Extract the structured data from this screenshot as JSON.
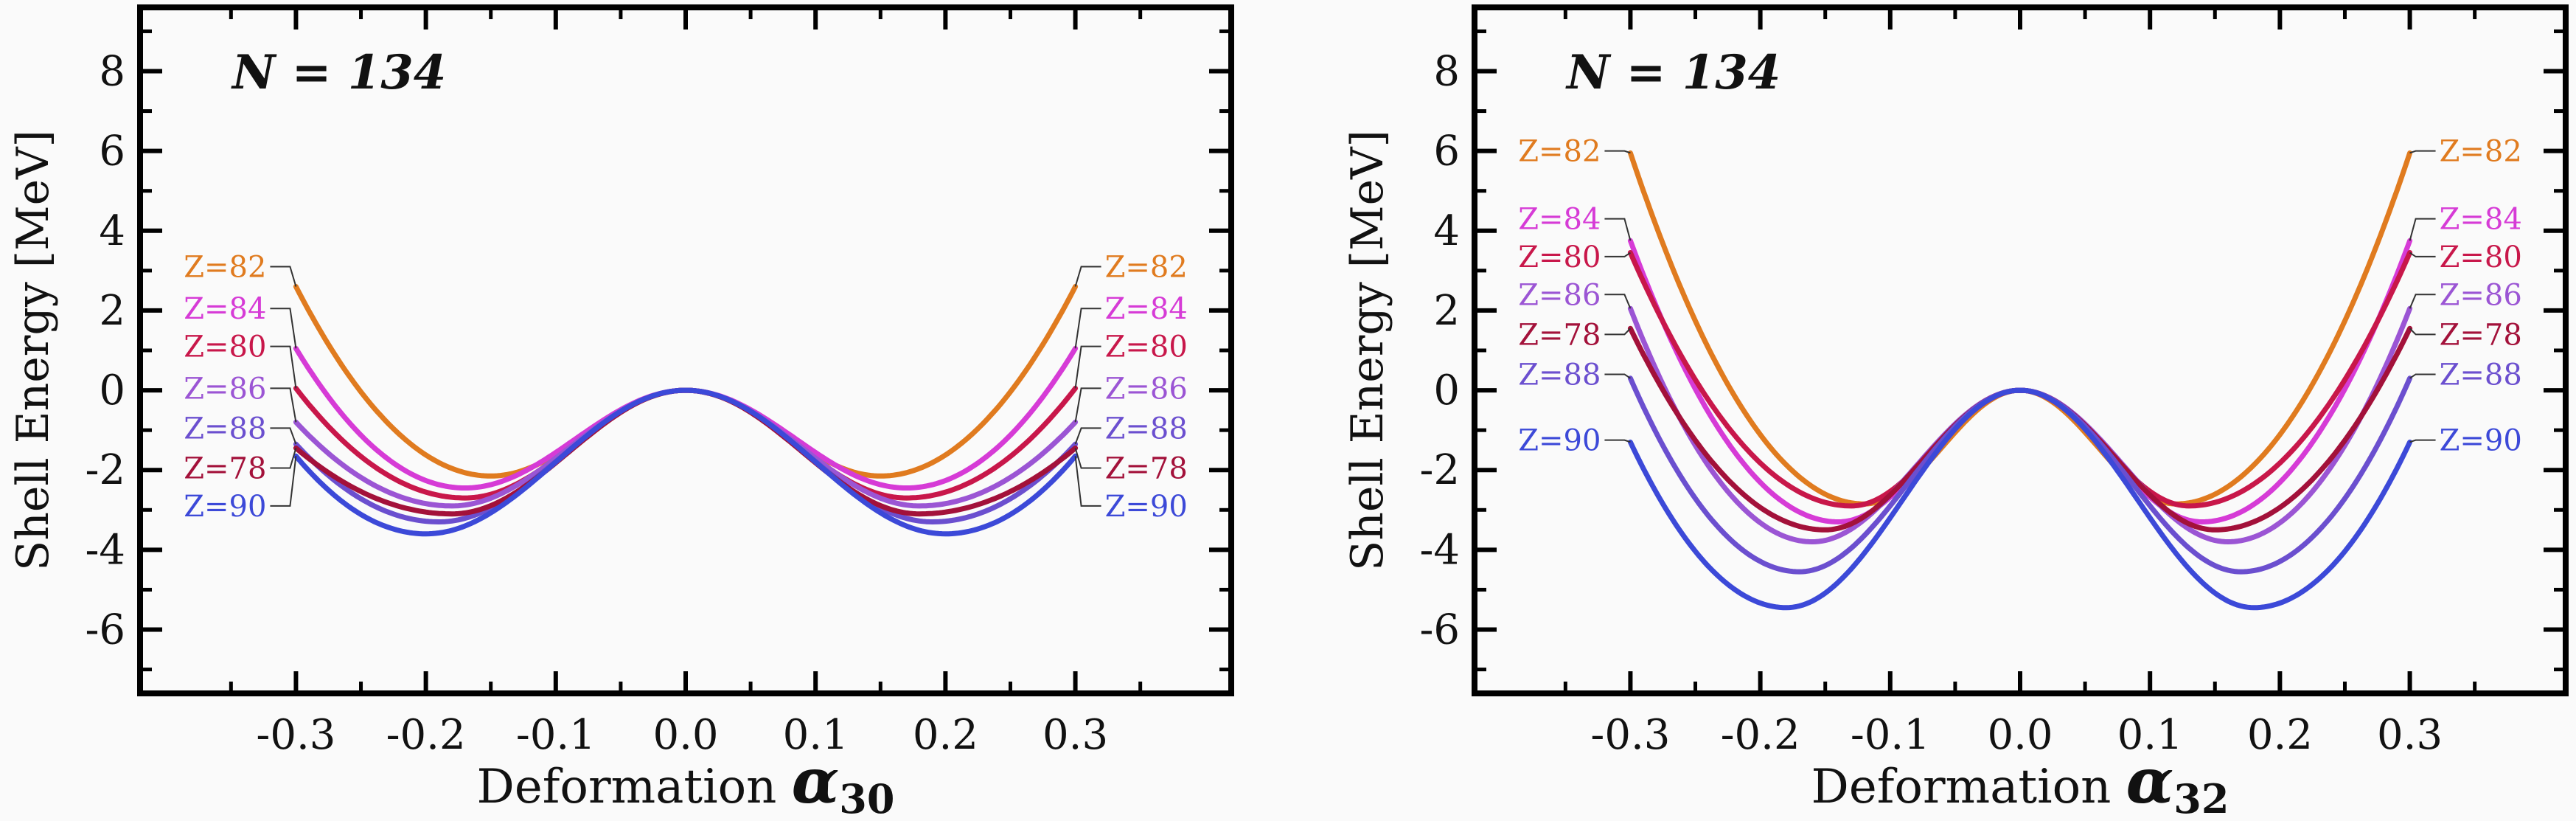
{
  "chart_data": [
    {
      "type": "line",
      "annotation": "N = 134",
      "xlabel_text": "Deformation ",
      "xlabel_symbol": "α",
      "xlabel_subscript": "30",
      "ylabel": "Shell Energy [MeV]",
      "xlim": [
        -0.42,
        0.42
      ],
      "ylim": [
        -7.6,
        9.6
      ],
      "xticks": [
        -0.3,
        -0.2,
        -0.1,
        0.0,
        0.1,
        0.2,
        0.3
      ],
      "xtick_labels": [
        "-0.3",
        "-0.2",
        "-0.1",
        "0.0",
        "0.1",
        "0.2",
        "0.3"
      ],
      "yticks": [
        -6,
        -4,
        -2,
        0,
        2,
        4,
        6,
        8
      ],
      "ytick_labels": [
        "-6",
        "-4",
        "-2",
        "0",
        "2",
        "4",
        "6",
        "8"
      ],
      "series": [
        {
          "name": "Z=82",
          "color": "#e07b1f",
          "min_x": 0.15,
          "min_y": -2.15,
          "end_y": 2.6
        },
        {
          "name": "Z=84",
          "color": "#d63bd6",
          "min_x": 0.17,
          "min_y": -2.45,
          "end_y": 1.05
        },
        {
          "name": "Z=80",
          "color": "#c8174a",
          "min_x": 0.17,
          "min_y": -2.7,
          "end_y": 0.05
        },
        {
          "name": "Z=86",
          "color": "#9b55d4",
          "min_x": 0.18,
          "min_y": -2.9,
          "end_y": -0.8
        },
        {
          "name": "Z=88",
          "color": "#6b4fcf",
          "min_x": 0.19,
          "min_y": -3.3,
          "end_y": -1.35
        },
        {
          "name": "Z=78",
          "color": "#a3113a",
          "min_x": 0.18,
          "min_y": -3.1,
          "end_y": -1.45
        },
        {
          "name": "Z=90",
          "color": "#3c49d8",
          "min_x": 0.2,
          "min_y": -3.6,
          "end_y": -1.65
        }
      ],
      "labels_left": [
        {
          "text": "Z=82",
          "y": 3.1,
          "color": "#e07b1f"
        },
        {
          "text": "Z=84",
          "y": 2.05,
          "color": "#d63bd6"
        },
        {
          "text": "Z=80",
          "y": 1.1,
          "color": "#c8174a"
        },
        {
          "text": "Z=86",
          "y": 0.05,
          "color": "#9b55d4"
        },
        {
          "text": "Z=88",
          "y": -0.95,
          "color": "#6b4fcf"
        },
        {
          "text": "Z=78",
          "y": -1.95,
          "color": "#a3113a"
        },
        {
          "text": "Z=90",
          "y": -2.9,
          "color": "#3c49d8"
        }
      ],
      "labels_right": [
        {
          "text": "Z=82",
          "y": 3.1,
          "color": "#e07b1f"
        },
        {
          "text": "Z=84",
          "y": 2.05,
          "color": "#d63bd6"
        },
        {
          "text": "Z=80",
          "y": 1.1,
          "color": "#c8174a"
        },
        {
          "text": "Z=86",
          "y": 0.05,
          "color": "#9b55d4"
        },
        {
          "text": "Z=88",
          "y": -0.95,
          "color": "#6b4fcf"
        },
        {
          "text": "Z=78",
          "y": -1.95,
          "color": "#a3113a"
        },
        {
          "text": "Z=90",
          "y": -2.9,
          "color": "#3c49d8"
        }
      ]
    },
    {
      "type": "line",
      "annotation": "N = 134",
      "xlabel_text": "Deformation ",
      "xlabel_symbol": "α",
      "xlabel_subscript": "32",
      "ylabel": "Shell Energy [MeV]",
      "xlim": [
        -0.42,
        0.42
      ],
      "ylim": [
        -7.6,
        9.6
      ],
      "xticks": [
        -0.3,
        -0.2,
        -0.1,
        0.0,
        0.1,
        0.2,
        0.3
      ],
      "xtick_labels": [
        "-0.3",
        "-0.2",
        "-0.1",
        "0.0",
        "0.1",
        "0.2",
        "0.3"
      ],
      "yticks": [
        -6,
        -4,
        -2,
        0,
        2,
        4,
        6,
        8
      ],
      "ytick_labels": [
        "-6",
        "-4",
        "-2",
        "0",
        "2",
        "4",
        "6",
        "8"
      ],
      "series": [
        {
          "name": "Z=82",
          "color": "#e07b1f",
          "min_x": 0.12,
          "min_y": -2.85,
          "end_y": 5.95
        },
        {
          "name": "Z=84",
          "color": "#d63bd6",
          "min_x": 0.14,
          "min_y": -3.3,
          "end_y": 3.75
        },
        {
          "name": "Z=80",
          "color": "#c8174a",
          "min_x": 0.13,
          "min_y": -2.9,
          "end_y": 3.45
        },
        {
          "name": "Z=86",
          "color": "#9b55d4",
          "min_x": 0.16,
          "min_y": -3.8,
          "end_y": 2.05
        },
        {
          "name": "Z=78",
          "color": "#a3113a",
          "min_x": 0.15,
          "min_y": -3.5,
          "end_y": 1.55
        },
        {
          "name": "Z=88",
          "color": "#6b4fcf",
          "min_x": 0.17,
          "min_y": -4.55,
          "end_y": 0.3
        },
        {
          "name": "Z=90",
          "color": "#3c49d8",
          "min_x": 0.18,
          "min_y": -5.45,
          "end_y": -1.3
        }
      ],
      "labels_left": [
        {
          "text": "Z=82",
          "y": 6.0,
          "color": "#e07b1f"
        },
        {
          "text": "Z=84",
          "y": 4.3,
          "color": "#d63bd6"
        },
        {
          "text": "Z=80",
          "y": 3.35,
          "color": "#c8174a"
        },
        {
          "text": "Z=86",
          "y": 2.4,
          "color": "#9b55d4"
        },
        {
          "text": "Z=78",
          "y": 1.4,
          "color": "#a3113a"
        },
        {
          "text": "Z=88",
          "y": 0.4,
          "color": "#6b4fcf"
        },
        {
          "text": "Z=90",
          "y": -1.25,
          "color": "#3c49d8"
        }
      ],
      "labels_right": [
        {
          "text": "Z=82",
          "y": 6.0,
          "color": "#e07b1f"
        },
        {
          "text": "Z=84",
          "y": 4.3,
          "color": "#d63bd6"
        },
        {
          "text": "Z=80",
          "y": 3.35,
          "color": "#c8174a"
        },
        {
          "text": "Z=86",
          "y": 2.4,
          "color": "#9b55d4"
        },
        {
          "text": "Z=78",
          "y": 1.4,
          "color": "#a3113a"
        },
        {
          "text": "Z=88",
          "y": 0.4,
          "color": "#6b4fcf"
        },
        {
          "text": "Z=90",
          "y": -1.25,
          "color": "#3c49d8"
        }
      ]
    }
  ]
}
